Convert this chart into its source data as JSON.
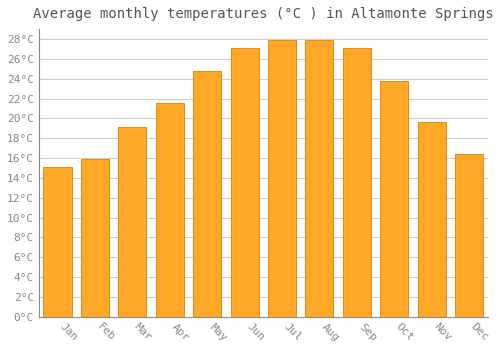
{
  "title": "Average monthly temperatures (°C ) in Altamonte Springs",
  "months": [
    "Jan",
    "Feb",
    "Mar",
    "Apr",
    "May",
    "Jun",
    "Jul",
    "Aug",
    "Sep",
    "Oct",
    "Nov",
    "Dec"
  ],
  "temperatures": [
    15.1,
    15.9,
    19.1,
    21.5,
    24.8,
    27.1,
    27.9,
    27.9,
    27.1,
    23.8,
    19.6,
    16.4
  ],
  "bar_color": "#FFA726",
  "bar_edge_color": "#E08000",
  "ylim": [
    0,
    29
  ],
  "ytick_max": 28,
  "ytick_step": 2,
  "background_color": "#FFFFFF",
  "grid_color": "#CCCCCC",
  "title_fontsize": 10,
  "tick_fontsize": 8,
  "font_family": "monospace"
}
